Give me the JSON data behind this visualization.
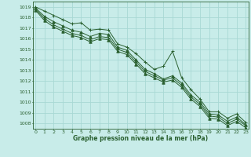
{
  "title": "Graphe pression niveau de la mer (hPa)",
  "background_color": "#c8ece9",
  "grid_color": "#a8d8d4",
  "line_color": "#2a6030",
  "xlim": [
    -0.3,
    23.3
  ],
  "ylim": [
    1007.5,
    1019.5
  ],
  "yticks": [
    1008,
    1009,
    1010,
    1011,
    1012,
    1013,
    1014,
    1015,
    1016,
    1017,
    1018,
    1019
  ],
  "xticks": [
    0,
    1,
    2,
    3,
    4,
    5,
    6,
    7,
    8,
    9,
    10,
    11,
    12,
    13,
    14,
    15,
    16,
    17,
    18,
    19,
    20,
    21,
    22,
    23
  ],
  "series": [
    [
      1019.0,
      1018.6,
      1018.2,
      1017.8,
      1017.4,
      1017.5,
      1016.8,
      1016.9,
      1016.8,
      1015.5,
      1015.2,
      1014.6,
      1013.8,
      1013.1,
      1013.4,
      1014.8,
      1012.3,
      1011.2,
      1010.3,
      1009.1,
      1009.1,
      1008.5,
      1008.9,
      1008.1
    ],
    [
      1018.9,
      1018.1,
      1017.6,
      1017.2,
      1016.8,
      1016.6,
      1016.2,
      1016.5,
      1016.4,
      1015.2,
      1014.9,
      1014.0,
      1013.1,
      1012.7,
      1012.2,
      1012.5,
      1011.8,
      1010.7,
      1010.0,
      1008.9,
      1008.8,
      1008.2,
      1008.6,
      1007.9
    ],
    [
      1018.8,
      1017.9,
      1017.3,
      1016.9,
      1016.5,
      1016.3,
      1015.9,
      1016.2,
      1016.1,
      1015.0,
      1014.7,
      1013.8,
      1012.9,
      1012.5,
      1012.1,
      1012.3,
      1011.6,
      1010.5,
      1009.8,
      1008.7,
      1008.6,
      1008.0,
      1008.4,
      1007.8
    ],
    [
      1018.7,
      1017.7,
      1017.1,
      1016.7,
      1016.3,
      1016.1,
      1015.7,
      1016.0,
      1015.9,
      1014.8,
      1014.5,
      1013.6,
      1012.7,
      1012.3,
      1011.9,
      1012.1,
      1011.4,
      1010.3,
      1009.6,
      1008.5,
      1008.4,
      1007.8,
      1008.2,
      1007.6
    ]
  ],
  "markers": [
    "+",
    "^",
    "+",
    "^"
  ],
  "title_fontsize": 5.5,
  "tick_fontsize": 4.5,
  "linewidth": 0.7,
  "markersize": 2.5
}
